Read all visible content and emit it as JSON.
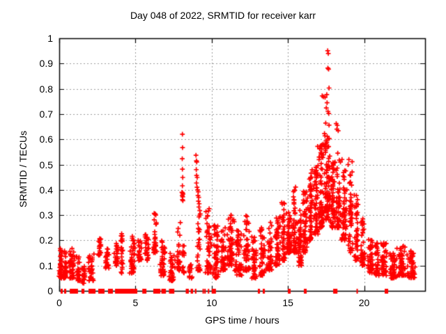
{
  "title": "Day 048 of 2022, SRMTID for receiver karr",
  "chart_data": {
    "type": "scatter",
    "title": "Day 048 of 2022, SRMTID for receiver karr",
    "xlabel": "GPS time / hours",
    "ylabel": "SRMTID / TECUs",
    "xlim": [
      0,
      24
    ],
    "ylim": [
      0,
      1
    ],
    "xticks": [
      0,
      5,
      10,
      15,
      20
    ],
    "xtick_labels": [
      "0",
      "5",
      "10",
      "15",
      "20"
    ],
    "yticks": [
      0,
      0.1,
      0.2,
      0.3,
      0.4,
      0.5,
      0.6,
      0.7,
      0.8,
      0.9,
      1
    ],
    "ytick_labels": [
      "0",
      "0.1",
      "0.2",
      "0.3",
      "0.4",
      "0.5",
      "0.6",
      "0.7",
      "0.8",
      "0.9",
      "1"
    ],
    "grid": true,
    "legend": "none",
    "marker": {
      "shape": "plus",
      "size": 7,
      "color": "#ff0000"
    },
    "colors": {
      "marker": "#ff0000",
      "grid": "#9a9a9a",
      "axis": "#000000",
      "background": "#ffffff"
    },
    "seed": 20220048,
    "cluster_fields": [
      "x_center_hours",
      "x_halfwidth_hours",
      "value_min",
      "value_max",
      "n_points"
    ],
    "clusters": [
      [
        0.1,
        0.12,
        0.05,
        0.17,
        40
      ],
      [
        0.38,
        0.14,
        0.05,
        0.16,
        35
      ],
      [
        0.8,
        0.22,
        0.05,
        0.17,
        45
      ],
      [
        1.25,
        0.15,
        0.04,
        0.14,
        28
      ],
      [
        1.6,
        0.12,
        0.03,
        0.12,
        22
      ],
      [
        2.1,
        0.22,
        0.04,
        0.15,
        35
      ],
      [
        2.65,
        0.12,
        0.14,
        0.21,
        18
      ],
      [
        3.15,
        0.15,
        0.09,
        0.17,
        25
      ],
      [
        3.75,
        0.15,
        0.1,
        0.19,
        25
      ],
      [
        4.1,
        0.08,
        0.07,
        0.23,
        25
      ],
      [
        4.8,
        0.2,
        0.07,
        0.22,
        40
      ],
      [
        5.3,
        0.15,
        0.12,
        0.2,
        25
      ],
      [
        5.75,
        0.15,
        0.12,
        0.23,
        28
      ],
      [
        6.3,
        0.12,
        0.15,
        0.31,
        30
      ],
      [
        6.8,
        0.2,
        0.06,
        0.2,
        40
      ],
      [
        7.4,
        0.2,
        0.04,
        0.15,
        35
      ],
      [
        7.85,
        0.12,
        0.08,
        0.28,
        25
      ],
      [
        8.15,
        0.1,
        0.07,
        0.18,
        20
      ],
      [
        8.6,
        0.15,
        0.05,
        0.12,
        15
      ],
      [
        9.15,
        0.12,
        0.08,
        0.3,
        30
      ],
      [
        9.8,
        0.22,
        0.07,
        0.33,
        50
      ],
      [
        10.3,
        0.22,
        0.05,
        0.28,
        55
      ],
      [
        10.75,
        0.18,
        0.08,
        0.25,
        40
      ],
      [
        11.25,
        0.25,
        0.1,
        0.3,
        55
      ],
      [
        11.75,
        0.25,
        0.06,
        0.25,
        50
      ],
      [
        12.3,
        0.25,
        0.08,
        0.3,
        55
      ],
      [
        12.8,
        0.2,
        0.05,
        0.22,
        40
      ],
      [
        13.3,
        0.25,
        0.06,
        0.25,
        45
      ],
      [
        13.8,
        0.25,
        0.08,
        0.28,
        45
      ],
      [
        14.3,
        0.25,
        0.1,
        0.3,
        50
      ],
      [
        14.7,
        0.15,
        0.12,
        0.35,
        40
      ],
      [
        15.1,
        0.2,
        0.15,
        0.33,
        50
      ],
      [
        15.45,
        0.15,
        0.15,
        0.42,
        45
      ],
      [
        15.8,
        0.15,
        0.1,
        0.32,
        45
      ],
      [
        16.15,
        0.2,
        0.15,
        0.4,
        55
      ],
      [
        16.5,
        0.15,
        0.2,
        0.48,
        50
      ],
      [
        16.85,
        0.18,
        0.22,
        0.5,
        55
      ],
      [
        17.2,
        0.22,
        0.25,
        0.58,
        70
      ],
      [
        17.6,
        0.22,
        0.28,
        0.62,
        80
      ],
      [
        17.95,
        0.18,
        0.25,
        0.52,
        60
      ],
      [
        18.3,
        0.18,
        0.25,
        0.55,
        50
      ],
      [
        18.7,
        0.22,
        0.2,
        0.48,
        55
      ],
      [
        19.1,
        0.18,
        0.15,
        0.52,
        50
      ],
      [
        19.5,
        0.18,
        0.12,
        0.38,
        40
      ],
      [
        19.9,
        0.18,
        0.1,
        0.3,
        40
      ],
      [
        20.4,
        0.22,
        0.07,
        0.22,
        45
      ],
      [
        20.85,
        0.18,
        0.06,
        0.2,
        40
      ],
      [
        21.3,
        0.22,
        0.06,
        0.2,
        45
      ],
      [
        21.9,
        0.28,
        0.05,
        0.17,
        55
      ],
      [
        22.5,
        0.28,
        0.06,
        0.18,
        55
      ],
      [
        23.1,
        0.28,
        0.05,
        0.16,
        45
      ],
      [
        16.45,
        0.08,
        0.4,
        0.49,
        6
      ]
    ],
    "feature_points": [
      [
        8.08,
        0.62
      ],
      [
        8.09,
        0.567
      ],
      [
        8.07,
        0.523
      ],
      [
        8.08,
        0.482
      ],
      [
        8.1,
        0.449
      ],
      [
        8.08,
        0.416
      ],
      [
        8.05,
        0.39
      ],
      [
        8.09,
        0.388
      ],
      [
        8.12,
        0.383
      ],
      [
        8.07,
        0.378
      ],
      [
        8.1,
        0.372
      ],
      [
        8.08,
        0.361
      ],
      [
        8.11,
        0.357
      ],
      [
        8.97,
        0.537
      ],
      [
        9.0,
        0.515
      ],
      [
        9.02,
        0.51
      ],
      [
        8.99,
        0.48
      ],
      [
        9.01,
        0.457
      ],
      [
        9.05,
        0.449
      ],
      [
        9.0,
        0.427
      ],
      [
        9.04,
        0.41
      ],
      [
        9.08,
        0.4
      ],
      [
        9.12,
        0.392
      ],
      [
        9.1,
        0.378
      ],
      [
        9.15,
        0.37
      ],
      [
        9.13,
        0.355
      ],
      [
        9.18,
        0.345
      ],
      [
        9.16,
        0.332
      ],
      [
        9.22,
        0.318
      ],
      [
        9.25,
        0.305
      ],
      [
        17.61,
        0.951
      ],
      [
        17.65,
        0.94
      ],
      [
        17.62,
        0.882
      ],
      [
        17.67,
        0.878
      ],
      [
        17.7,
        0.803
      ],
      [
        17.55,
        0.777
      ],
      [
        17.25,
        0.772
      ],
      [
        17.33,
        0.768
      ],
      [
        17.44,
        0.766
      ],
      [
        17.57,
        0.745
      ],
      [
        17.52,
        0.724
      ],
      [
        17.63,
        0.71
      ],
      [
        17.68,
        0.702
      ],
      [
        17.48,
        0.664
      ],
      [
        17.7,
        0.656
      ],
      [
        18.17,
        0.662
      ],
      [
        18.24,
        0.655
      ],
      [
        18.21,
        0.64
      ],
      [
        18.3,
        0.634
      ],
      [
        17.4,
        0.623
      ],
      [
        17.58,
        0.612
      ],
      [
        17.63,
        0.601
      ],
      [
        17.5,
        0.594
      ],
      [
        17.55,
        0.588
      ],
      [
        17.3,
        0.581
      ],
      [
        16.95,
        0.572
      ],
      [
        17.1,
        0.565
      ],
      [
        19.0,
        0.52
      ],
      [
        18.95,
        0.5
      ],
      [
        18.55,
        0.52
      ]
    ],
    "zero_value_segments_hours": [
      [
        0.09,
        0.23
      ],
      [
        0.32,
        0.46
      ],
      [
        0.69,
        1.23
      ],
      [
        1.46,
        1.65
      ],
      [
        1.92,
        2.38
      ],
      [
        2.56,
        2.97
      ],
      [
        3.2,
        3.52
      ],
      [
        3.66,
        5.12
      ],
      [
        5.45,
        5.72
      ],
      [
        6.17,
        6.63
      ],
      [
        6.7,
        7.0
      ],
      [
        7.2,
        7.55
      ],
      [
        8.3,
        8.5
      ],
      [
        8.62,
        8.78
      ],
      [
        8.9,
        9.0
      ],
      [
        9.4,
        9.45
      ],
      [
        9.52,
        9.56
      ],
      [
        9.75,
        9.8
      ],
      [
        10.0,
        10.28
      ],
      [
        13.03,
        13.17
      ],
      [
        13.35,
        13.49
      ],
      [
        15.0,
        15.18
      ],
      [
        16.05,
        16.09
      ],
      [
        16.14,
        16.18
      ],
      [
        17.97,
        18.25
      ],
      [
        19.5,
        19.55
      ],
      [
        21.35,
        21.58
      ]
    ]
  }
}
